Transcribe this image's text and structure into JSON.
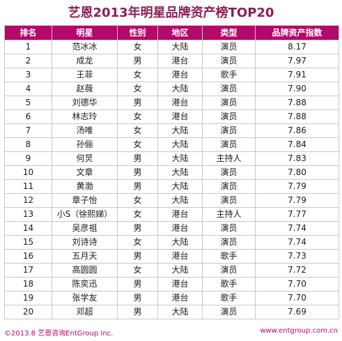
{
  "title": "艺恩2013年明星品牌资产榜TOP20",
  "headers": [
    "排名",
    "明星",
    "性别",
    "地区",
    "类型",
    "品牌资产指数"
  ],
  "rows": [
    [
      "1",
      "范冰冰",
      "女",
      "大陆",
      "演员",
      "8.17"
    ],
    [
      "2",
      "成龙",
      "男",
      "港台",
      "演员",
      "7.97"
    ],
    [
      "3",
      "王菲",
      "女",
      "港台",
      "歌手",
      "7.91"
    ],
    [
      "4",
      "赵薇",
      "女",
      "大陆",
      "演员",
      "7.90"
    ],
    [
      "5",
      "刘德华",
      "男",
      "港台",
      "演员",
      "7.88"
    ],
    [
      "6",
      "林志玲",
      "女",
      "港台",
      "演员",
      "7.88"
    ],
    [
      "7",
      "汤唯",
      "女",
      "大陆",
      "演员",
      "7.86"
    ],
    [
      "8",
      "孙俪",
      "女",
      "大陆",
      "演员",
      "7.84"
    ],
    [
      "9",
      "何炅",
      "男",
      "大陆",
      "主持人",
      "7.83"
    ],
    [
      "10",
      "文章",
      "男",
      "大陆",
      "演员",
      "7.80"
    ],
    [
      "11",
      "黄渤",
      "男",
      "大陆",
      "演员",
      "7.79"
    ],
    [
      "12",
      "章子怡",
      "女",
      "大陆",
      "演员",
      "7.79"
    ],
    [
      "13",
      "小S（徐熙娣）",
      "女",
      "港台",
      "主持人",
      "7.77"
    ],
    [
      "14",
      "吴彦祖",
      "男",
      "港台",
      "演员",
      "7.74"
    ],
    [
      "15",
      "刘诗诗",
      "女",
      "大陆",
      "演员",
      "7.74"
    ],
    [
      "16",
      "五月天",
      "男",
      "港台",
      "歌手",
      "7.73"
    ],
    [
      "17",
      "高圆圆",
      "女",
      "大陆",
      "演员",
      "7.72"
    ],
    [
      "18",
      "陈奕迅",
      "男",
      "港台",
      "歌手",
      "7.70"
    ],
    [
      "19",
      "张学友",
      "男",
      "港台",
      "歌手",
      "7.70"
    ],
    [
      "20",
      "邓超",
      "男",
      "大陆",
      "演员",
      "7.69"
    ]
  ],
  "footer": {
    "left": "©2013.8 艺恩咨询EntGroup Inc.",
    "right": "www.entgroup.com.cn"
  },
  "colors": {
    "header_bg": "#b2096a",
    "title": "#8a1e57",
    "footer": "#b2096a"
  },
  "chart_data": {
    "type": "table",
    "title": "艺恩2013年明星品牌资产榜TOP20",
    "columns": [
      "排名",
      "明星",
      "性别",
      "地区",
      "类型",
      "品牌资产指数"
    ]
  }
}
